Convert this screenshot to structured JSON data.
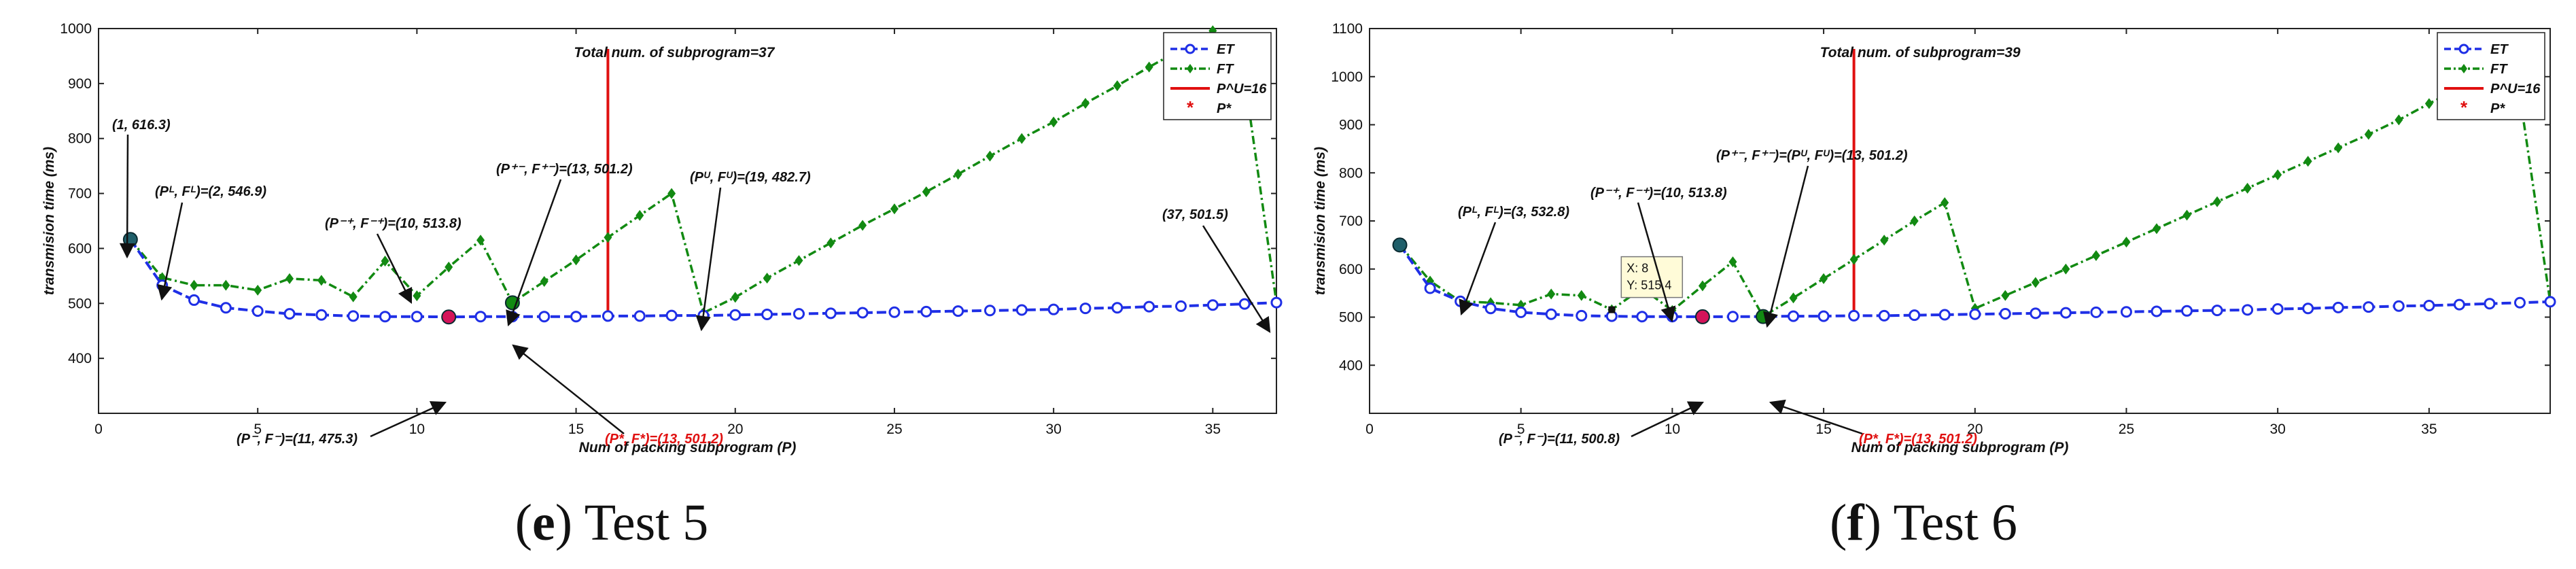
{
  "chart_data": [
    {
      "type": "line",
      "panel_label": "e",
      "caption": "Test 5",
      "xlabel": "Num of packing subprogram (P)",
      "ylabel": "transmision time (ms)",
      "xlim": [
        0,
        37
      ],
      "ylim": [
        300,
        1000
      ],
      "xticks": [
        0,
        5,
        10,
        15,
        20,
        25,
        30,
        35
      ],
      "yticks": [
        400,
        500,
        600,
        700,
        800,
        900,
        1000
      ],
      "legend": [
        "ET",
        "FT",
        "P^U=16",
        "P*"
      ],
      "legend_position": "top-right",
      "vline": {
        "x": 16,
        "label": "Total num. of subprogram=37"
      },
      "series": [
        {
          "name": "ET",
          "color": "#1f2fe6",
          "x": [
            1,
            2,
            3,
            4,
            5,
            6,
            7,
            8,
            9,
            10,
            11,
            12,
            13,
            14,
            15,
            16,
            17,
            18,
            19,
            20,
            21,
            22,
            23,
            24,
            25,
            26,
            27,
            28,
            29,
            30,
            31,
            32,
            33,
            34,
            35,
            36,
            37
          ],
          "values": [
            616.3,
            533,
            506,
            492,
            486,
            481,
            479,
            477,
            476,
            476,
            475.3,
            476,
            476,
            476,
            476,
            477,
            477,
            478,
            478,
            479,
            480,
            481,
            482,
            483,
            484,
            485,
            486,
            487,
            488,
            489,
            491,
            492,
            494,
            495,
            497,
            499,
            501.5
          ]
        },
        {
          "name": "FT",
          "color": "#128a12",
          "x": [
            1,
            2,
            3,
            4,
            5,
            6,
            7,
            8,
            9,
            10,
            11,
            12,
            13,
            14,
            15,
            16,
            17,
            18,
            19,
            20,
            21,
            22,
            23,
            24,
            25,
            26,
            27,
            28,
            29,
            30,
            31,
            32,
            33,
            34,
            35,
            36,
            37
          ],
          "values": [
            616.3,
            546.9,
            533,
            533,
            524,
            545,
            542,
            512,
            577,
            513.8,
            566,
            615,
            501.2,
            540,
            579,
            620,
            660,
            700,
            482.7,
            511,
            546,
            578,
            610,
            642,
            672,
            703,
            735,
            768,
            800,
            830,
            864,
            896,
            930,
            962,
            996,
            910,
            501.5
          ]
        }
      ],
      "highlights": [
        {
          "x": 1,
          "y": 616.3,
          "color": "#1f5f6a"
        },
        {
          "x": 11,
          "y": 475.3,
          "color": "#d4145a"
        },
        {
          "x": 13,
          "y": 501.2,
          "color": "#128a12"
        }
      ],
      "annotations": [
        {
          "text": "(1, 616.3)",
          "red": false
        },
        {
          "text": "(Pᴸ, Fᴸ)=(2, 546.9)",
          "red": false
        },
        {
          "text": "(P⁻⁺, F⁻⁺)=(10, 513.8)",
          "red": false
        },
        {
          "text": "(P⁺⁻, F⁺⁻)=(13, 501.2)",
          "red": false
        },
        {
          "text": "(Pᵁ, Fᵁ)=(19, 482.7)",
          "red": false
        },
        {
          "text": "(37, 501.5)",
          "red": false
        },
        {
          "text": "(P⁻, F⁻)=(11, 475.3)",
          "red": false
        },
        {
          "text": "(P*, F*)=(13, 501.2)",
          "red": true
        }
      ]
    },
    {
      "type": "line",
      "panel_label": "f",
      "caption": "Test 6",
      "xlabel": "Num of packing subprogram (P)",
      "ylabel": "transmision time (ms)",
      "xlim": [
        0,
        39
      ],
      "ylim": [
        300,
        1100
      ],
      "xticks": [
        0,
        5,
        10,
        15,
        20,
        25,
        30,
        35
      ],
      "yticks": [
        400,
        500,
        600,
        700,
        800,
        900,
        1000,
        1100
      ],
      "legend": [
        "ET",
        "FT",
        "P^U=16",
        "P*"
      ],
      "legend_position": "top-right",
      "vline": {
        "x": 16,
        "label": "Total num. of subprogram=39"
      },
      "datatip": {
        "x": 8,
        "y": 515.4,
        "line1": "X: 8",
        "line2": "Y: 515.4"
      },
      "series": [
        {
          "name": "ET",
          "color": "#1f2fe6",
          "x": [
            1,
            2,
            3,
            4,
            5,
            6,
            7,
            8,
            9,
            10,
            11,
            12,
            13,
            14,
            15,
            16,
            17,
            18,
            19,
            20,
            21,
            22,
            23,
            24,
            25,
            26,
            27,
            28,
            29,
            30,
            31,
            32,
            33,
            34,
            35,
            36,
            37,
            38,
            39
          ],
          "values": [
            650,
            560,
            532.8,
            518,
            510,
            506,
            503,
            502,
            501,
            501,
            500.8,
            501,
            501.2,
            502,
            502,
            503,
            503,
            504,
            505,
            506,
            507,
            508,
            509,
            510,
            511,
            512,
            513,
            514,
            515,
            517,
            518,
            520,
            521,
            523,
            524,
            526,
            528,
            530,
            532
          ]
        },
        {
          "name": "FT",
          "color": "#128a12",
          "x": [
            1,
            2,
            3,
            4,
            5,
            6,
            7,
            8,
            9,
            10,
            11,
            12,
            13,
            14,
            15,
            16,
            17,
            18,
            19,
            20,
            21,
            22,
            23,
            24,
            25,
            26,
            27,
            28,
            29,
            30,
            31,
            32,
            33,
            34,
            35,
            36,
            37,
            38,
            39
          ],
          "values": [
            650,
            575,
            532.8,
            530,
            525,
            548,
            545,
            515.4,
            560,
            513.8,
            565,
            615,
            501.2,
            540,
            580,
            620,
            660,
            700,
            738,
            518,
            545,
            572,
            600,
            628,
            656,
            684,
            712,
            740,
            768,
            796,
            824,
            852,
            880,
            910,
            944,
            976,
            1008,
            960,
            532
          ]
        }
      ],
      "highlights": [
        {
          "x": 1,
          "y": 650,
          "color": "#1f5f6a"
        },
        {
          "x": 11,
          "y": 500.8,
          "color": "#d4145a"
        },
        {
          "x": 13,
          "y": 501.2,
          "color": "#128a12"
        }
      ],
      "annotations": [
        {
          "text": "(Pᴸ, Fᴸ)=(3, 532.8)",
          "red": false
        },
        {
          "text": "(P⁻⁺, F⁻⁺)=(10, 513.8)",
          "red": false
        },
        {
          "text": "(P⁺⁻, F⁺⁻)=(Pᵁ, Fᵁ)=(13, 501.2)",
          "red": false
        },
        {
          "text": "(P⁻, F⁻)=(11, 500.8)",
          "red": false
        },
        {
          "text": "(P*, F*)=(13, 501.2)",
          "red": true
        }
      ]
    }
  ]
}
